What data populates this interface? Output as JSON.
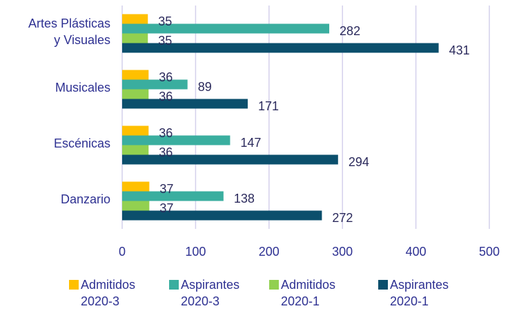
{
  "chart_data": {
    "type": "hbar",
    "categories": [
      "Artes Plásticas\ny Visuales",
      "Musicales",
      "Escénicas",
      "Danzario"
    ],
    "series": [
      {
        "name": "Admitidos\n2020-3",
        "color": "#ffc000",
        "values": [
          35,
          36,
          36,
          37
        ]
      },
      {
        "name": "Aspirantes\n2020-3",
        "color": "#3aae9f",
        "values": [
          282,
          89,
          147,
          138
        ]
      },
      {
        "name": "Admitidos\n2020-1",
        "color": "#92d050",
        "values": [
          35,
          36,
          36,
          37
        ]
      },
      {
        "name": "Aspirantes\n2020-1",
        "color": "#0b4f6c",
        "values": [
          431,
          171,
          294,
          272
        ]
      }
    ],
    "xlim": [
      0,
      500
    ],
    "xticks": [
      0,
      100,
      200,
      300,
      400,
      500
    ],
    "grid": true,
    "legend": "bottom"
  }
}
